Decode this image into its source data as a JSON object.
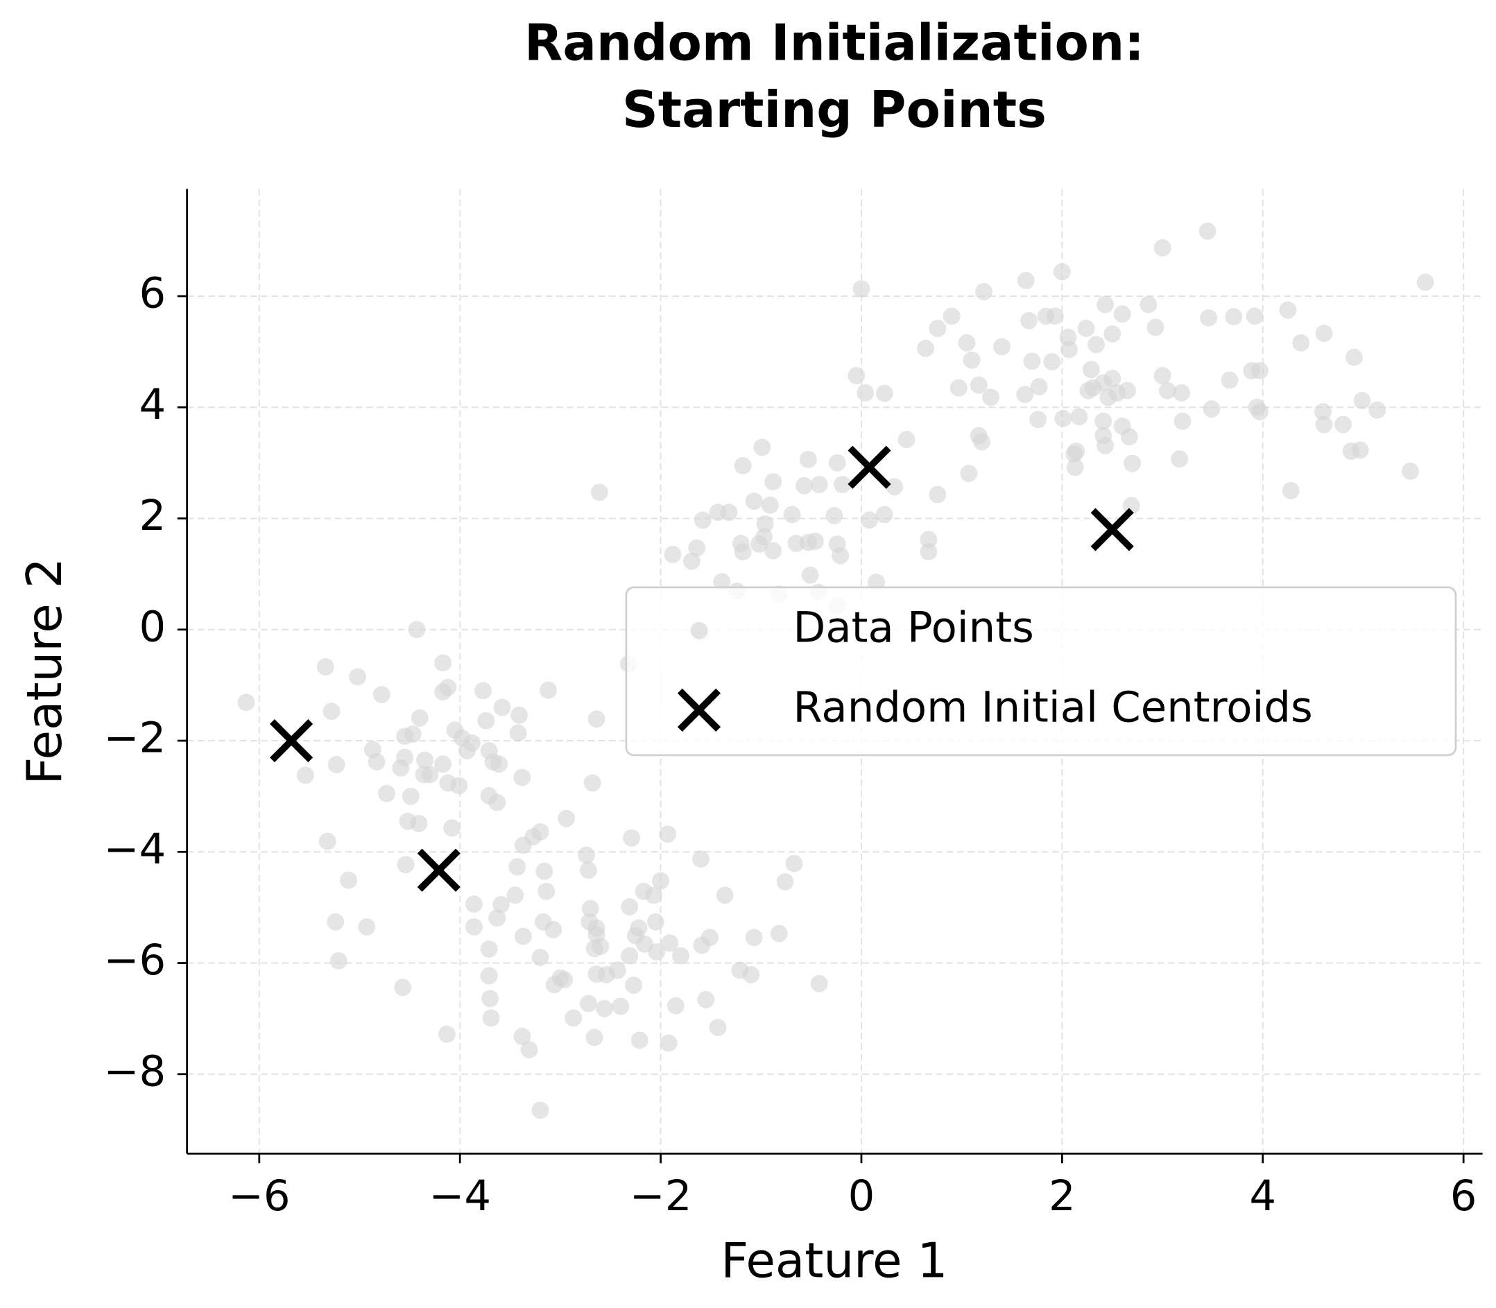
{
  "chart_data": {
    "type": "scatter",
    "title": "Random Initialization:\nStarting Points",
    "xlabel": "Feature 1",
    "ylabel": "Feature 2",
    "xlim": [
      -6.72,
      6.19
    ],
    "ylim": [
      -9.43,
      7.93
    ],
    "xticks": [
      {
        "value": -6,
        "label": "−6"
      },
      {
        "value": -4,
        "label": "−4"
      },
      {
        "value": -2,
        "label": "−2"
      },
      0,
      2,
      4,
      6
    ],
    "yticks": [
      {
        "value": -8,
        "label": "−8"
      },
      {
        "value": -6,
        "label": "−6"
      },
      {
        "value": -4,
        "label": "−4"
      },
      {
        "value": -2,
        "label": "−2"
      },
      0,
      2,
      4,
      6
    ],
    "grid": true,
    "legend": "center right",
    "series": [
      {
        "name": "Data Points",
        "color": "#d3d3d3",
        "alpha": 0.6,
        "marker": "circle",
        "x": [
          0,
          3.0,
          3.45,
          5.62,
          1.64,
          2.0,
          1.22,
          1.67,
          1.84,
          1.93,
          2.43,
          2.6,
          2.86,
          2.93,
          3.46,
          3.71,
          3.92,
          4.25,
          4.38,
          4.61,
          4.91,
          3.67,
          3.89,
          3.97,
          3.94,
          3.97,
          3.49,
          4.6,
          4.61,
          4.8,
          4.99,
          5.14,
          4.97,
          4.88,
          5.47,
          4.28,
          3.19,
          3.0,
          3.05,
          3.2,
          3.17,
          2.7,
          2.69,
          2.67,
          2.6,
          2.41,
          2.43,
          2.14,
          2.13,
          2.12,
          2.41,
          2.17,
          2.01,
          1.76,
          1.77,
          1.63,
          1.7,
          1.9,
          2.07,
          2.06,
          2.24,
          2.34,
          2.5,
          2.29,
          2.31,
          2.41,
          2.5,
          2.55,
          2.65,
          2.46,
          2.26,
          1.4,
          1.05,
          1.1,
          0.9,
          0.76,
          0.64,
          0.97,
          1.17,
          1.29,
          1.17,
          1.2,
          1.07,
          -0.05,
          0.04,
          0.23,
          0.45,
          0.76,
          0.67,
          0.67,
          0.15,
          0.23,
          0.08,
          0.33,
          -0.24,
          -0.19,
          -0.42,
          -0.57,
          -0.53,
          -0.27,
          -0.24,
          -0.21,
          -0.46,
          -0.53,
          -0.65,
          -0.51,
          -0.43,
          -0.82,
          -0.24,
          -0.69,
          -0.88,
          -0.99,
          -0.91,
          -1.07,
          -0.96,
          -0.97,
          -0.88,
          -1.02,
          -1.2,
          -1.18,
          -1.18,
          -1.32,
          -1.43,
          -1.58,
          -1.64,
          -1.69,
          -1.88,
          -1.39,
          -1.24,
          -1.6,
          -2.32,
          -2.61,
          -2.64,
          -4.43,
          -5.34,
          -5.02,
          -6.13,
          -5.28,
          -4.78,
          -4.17,
          -4.12,
          -4.17,
          -3.77,
          -3.12,
          -3.58,
          -3.41,
          -3.74,
          -3.42,
          -4.4,
          -4.47,
          -4.55,
          -4.05,
          -3.98,
          -3.88,
          -3.93,
          -3.71,
          -3.67,
          -3.61,
          -4.87,
          -4.83,
          -4.59,
          -4.55,
          -4.35,
          -4.36,
          -4.17,
          -4.3,
          -4.12,
          -4.01,
          -5.54,
          -5.23,
          -4.73,
          -4.49,
          -3.71,
          -3.63,
          -3.38,
          -2.68,
          -4.52,
          -4.41,
          -4.08,
          -2.94,
          -3.2,
          -3.27,
          -3.37,
          -5.32,
          -2.29,
          -1.93,
          -2.74,
          -2.72,
          -1.6,
          -0.67,
          -0.76,
          -4.54,
          -3.43,
          -3.16,
          -3.14,
          -5.11,
          -2.0,
          -2.17,
          -2.07,
          -1.36,
          -3.45,
          -3.86,
          -3.59,
          -3.63,
          -2.7,
          -2.31,
          -5.24,
          -4.93,
          -3.86,
          -3.17,
          -3.07,
          -2.71,
          -2.64,
          -2.6,
          -2.64,
          -2.22,
          -2.05,
          -2.25,
          -3.37,
          -2.66,
          -3.71,
          -2.16,
          -1.91,
          -2.04,
          -2.31,
          -1.8,
          -1.59,
          -1.51,
          -1.07,
          -0.82,
          -5.21,
          -3.2,
          -3.71,
          -3.0,
          -2.96,
          -3.06,
          -2.64,
          -2.54,
          -2.43,
          -2.27,
          -1.21,
          -1.1,
          -0.42,
          -4.57,
          -3.7,
          -2.56,
          -2.72,
          -2.4,
          -1.85,
          -1.55,
          -3.69,
          -2.87,
          -1.43,
          -4.13,
          -3.38,
          -2.66,
          -2.21,
          -1.92,
          -3.31,
          -3.2
        ],
        "values": [
          6.13,
          6.87,
          7.17,
          6.25,
          6.28,
          6.44,
          6.08,
          5.56,
          5.64,
          5.64,
          5.85,
          5.68,
          5.85,
          5.44,
          5.61,
          5.63,
          5.64,
          5.75,
          5.16,
          5.33,
          4.9,
          4.49,
          4.66,
          4.66,
          4.0,
          3.92,
          3.97,
          3.92,
          3.69,
          3.69,
          4.12,
          3.95,
          3.23,
          3.21,
          2.85,
          2.5,
          4.26,
          4.57,
          4.3,
          3.75,
          3.07,
          2.99,
          2.23,
          3.47,
          3.66,
          3.49,
          3.31,
          3.21,
          2.92,
          3.16,
          3.75,
          3.83,
          3.8,
          3.78,
          4.37,
          4.23,
          4.83,
          4.82,
          5.04,
          5.26,
          5.42,
          5.13,
          5.32,
          4.68,
          4.35,
          4.44,
          4.52,
          4.26,
          4.3,
          4.18,
          4.3,
          5.09,
          5.16,
          4.85,
          5.64,
          5.42,
          5.06,
          4.35,
          4.4,
          4.18,
          3.49,
          3.38,
          2.81,
          4.57,
          4.26,
          4.25,
          3.42,
          2.43,
          1.62,
          1.4,
          0.85,
          2.07,
          1.97,
          2.57,
          3.0,
          2.61,
          2.61,
          2.59,
          3.06,
          2.05,
          1.54,
          1.33,
          1.59,
          1.57,
          1.55,
          0.98,
          0.67,
          0.64,
          0.43,
          2.07,
          2.66,
          3.28,
          2.24,
          2.31,
          1.9,
          1.67,
          1.42,
          1.54,
          1.55,
          1.4,
          2.95,
          2.11,
          2.11,
          1.97,
          1.47,
          1.23,
          1.35,
          0.86,
          0.69,
          -0.05,
          -0.62,
          2.47,
          -1.61,
          0.0,
          -0.67,
          -0.85,
          -1.31,
          -1.47,
          -1.17,
          -0.6,
          -1.04,
          -1.12,
          -1.1,
          -1.09,
          -1.4,
          -1.54,
          -1.64,
          -1.86,
          -1.59,
          -1.88,
          -1.92,
          -1.81,
          -1.95,
          -2.04,
          -2.18,
          -2.18,
          -2.38,
          -2.42,
          -2.16,
          -2.38,
          -2.49,
          -2.3,
          -2.35,
          -2.61,
          -2.42,
          -2.61,
          -2.76,
          -2.81,
          -2.62,
          -2.43,
          -2.95,
          -3.0,
          -2.99,
          -3.11,
          -2.66,
          -2.76,
          -3.45,
          -3.49,
          -3.57,
          -3.4,
          -3.64,
          -3.73,
          -3.88,
          -3.81,
          -3.75,
          -3.68,
          -4.06,
          -4.33,
          -4.13,
          -4.21,
          -4.54,
          -4.23,
          -4.27,
          -4.35,
          -4.71,
          -4.51,
          -4.52,
          -4.71,
          -4.78,
          -4.78,
          -4.78,
          -4.94,
          -4.95,
          -5.19,
          -5.02,
          -4.99,
          -5.26,
          -5.35,
          -5.35,
          -5.26,
          -5.4,
          -5.26,
          -5.49,
          -5.7,
          -5.37,
          -5.37,
          -5.26,
          -5.51,
          -5.52,
          -5.74,
          -5.75,
          -5.66,
          -5.64,
          -5.8,
          -5.87,
          -5.87,
          -5.68,
          -5.54,
          -5.54,
          -5.47,
          -5.96,
          -5.9,
          -6.23,
          -6.27,
          -6.3,
          -6.39,
          -6.2,
          -6.21,
          -6.13,
          -6.4,
          -6.13,
          -6.21,
          -6.37,
          -6.44,
          -6.64,
          -6.82,
          -6.73,
          -6.78,
          -6.77,
          -6.66,
          -6.99,
          -6.99,
          -7.16,
          -7.28,
          -7.32,
          -7.34,
          -7.39,
          -7.44,
          -7.56,
          -8.65
        ]
      },
      {
        "name": "Random Initial Centroids",
        "color": "#000000",
        "marker": "x",
        "x": [
          -5.68,
          -4.21,
          0.08,
          2.5
        ],
        "values": [
          -2.0,
          -4.33,
          2.92,
          1.8
        ]
      }
    ]
  }
}
